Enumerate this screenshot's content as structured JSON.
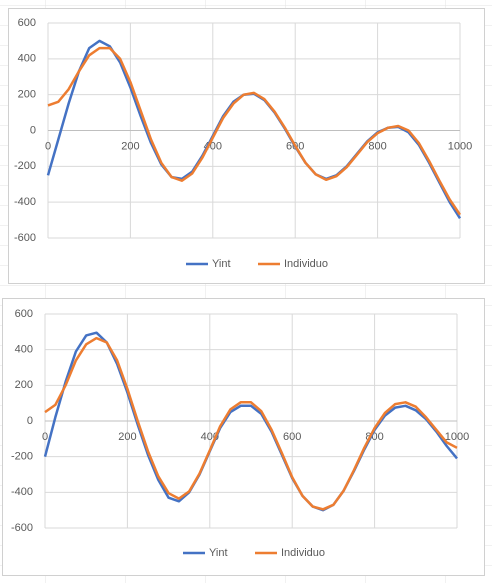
{
  "chart_data": [
    {
      "type": "line",
      "x": [
        0,
        25,
        50,
        75,
        100,
        125,
        150,
        175,
        200,
        225,
        250,
        275,
        300,
        325,
        350,
        375,
        400,
        425,
        450,
        475,
        500,
        525,
        550,
        575,
        600,
        625,
        650,
        675,
        700,
        725,
        750,
        775,
        800,
        825,
        850,
        875,
        900,
        925,
        950,
        975,
        1000
      ],
      "series": [
        {
          "name": "Yint",
          "color": "#4472c4",
          "values": [
            -250,
            -50,
            150,
            330,
            460,
            500,
            470,
            380,
            240,
            80,
            -70,
            -190,
            -260,
            -270,
            -230,
            -140,
            -30,
            80,
            160,
            200,
            205,
            170,
            100,
            10,
            -90,
            -180,
            -245,
            -270,
            -250,
            -200,
            -130,
            -60,
            -10,
            15,
            20,
            -10,
            -80,
            -180,
            -290,
            -400,
            -490
          ]
        },
        {
          "name": "Individuo",
          "color": "#ed7d31",
          "values": [
            140,
            160,
            230,
            330,
            420,
            460,
            460,
            400,
            270,
            110,
            -50,
            -180,
            -260,
            -280,
            -240,
            -150,
            -40,
            70,
            150,
            200,
            210,
            175,
            105,
            15,
            -85,
            -180,
            -245,
            -275,
            -255,
            -205,
            -135,
            -65,
            -15,
            15,
            25,
            0,
            -70,
            -170,
            -280,
            -385,
            -470
          ]
        }
      ],
      "xlim": [
        0,
        1000
      ],
      "xticks": [
        0,
        200,
        400,
        600,
        800,
        1000
      ],
      "ylim": [
        -600,
        600
      ],
      "yticks": [
        -600,
        -400,
        -200,
        0,
        200,
        400,
        600
      ],
      "grid": true,
      "legend": "bottom"
    },
    {
      "type": "line",
      "x": [
        0,
        25,
        50,
        75,
        100,
        125,
        150,
        175,
        200,
        225,
        250,
        275,
        300,
        325,
        350,
        375,
        400,
        425,
        450,
        475,
        500,
        525,
        550,
        575,
        600,
        625,
        650,
        675,
        700,
        725,
        750,
        775,
        800,
        825,
        850,
        875,
        900,
        925,
        950,
        975,
        1000
      ],
      "series": [
        {
          "name": "Yint",
          "color": "#4472c4",
          "values": [
            -200,
            20,
            220,
            390,
            480,
            495,
            440,
            320,
            160,
            -20,
            -190,
            -330,
            -430,
            -450,
            -400,
            -300,
            -170,
            -40,
            50,
            85,
            85,
            40,
            -60,
            -190,
            -320,
            -420,
            -480,
            -500,
            -470,
            -390,
            -280,
            -160,
            -50,
            30,
            75,
            85,
            60,
            10,
            -60,
            -140,
            -210
          ]
        },
        {
          "name": "Individuo",
          "color": "#ed7d31",
          "values": [
            50,
            90,
            200,
            340,
            430,
            465,
            440,
            340,
            180,
            0,
            -170,
            -310,
            -405,
            -435,
            -395,
            -295,
            -165,
            -30,
            65,
            105,
            105,
            55,
            -50,
            -180,
            -315,
            -420,
            -480,
            -495,
            -470,
            -390,
            -275,
            -150,
            -40,
            45,
            95,
            105,
            80,
            20,
            -50,
            -120,
            -150
          ]
        }
      ],
      "xlim": [
        0,
        1000
      ],
      "xticks": [
        0,
        200,
        400,
        600,
        800,
        1000
      ],
      "ylim": [
        -600,
        600
      ],
      "yticks": [
        -600,
        -400,
        -200,
        0,
        200,
        400,
        600
      ],
      "grid": true,
      "legend": "bottom"
    }
  ]
}
